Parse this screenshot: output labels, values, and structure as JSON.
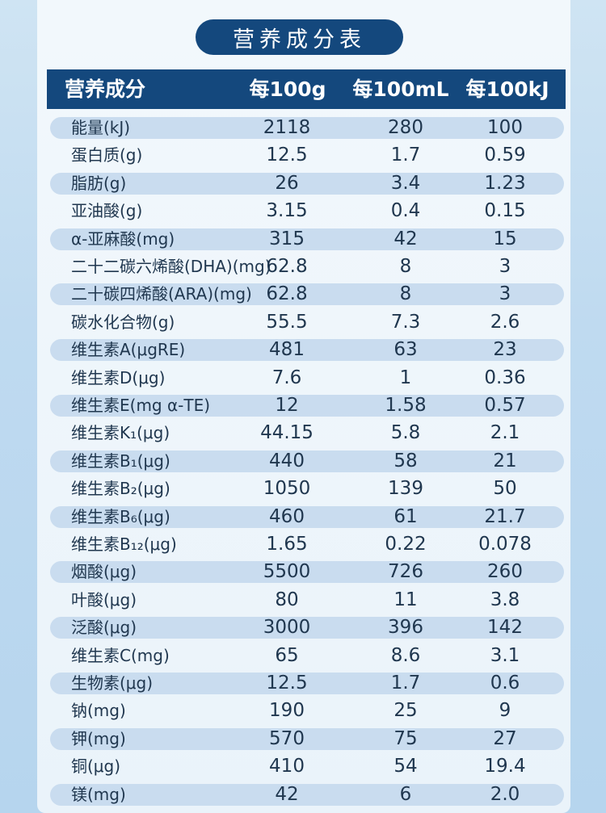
{
  "title": "营养成分表",
  "header": {
    "name": "营养成分",
    "per_100g": "每100g",
    "per_100ml": "每100mL",
    "per_100kj": "每100kJ"
  },
  "rows": [
    {
      "name": "能量(kJ)",
      "v1": "2118",
      "v2": "280",
      "v3": "100"
    },
    {
      "name": "蛋白质(g)",
      "v1": "12.5",
      "v2": "1.7",
      "v3": "0.59"
    },
    {
      "name": "脂肪(g)",
      "v1": "26",
      "v2": "3.4",
      "v3": "1.23"
    },
    {
      "name": "亚油酸(g)",
      "v1": "3.15",
      "v2": "0.4",
      "v3": "0.15"
    },
    {
      "name": "α-亚麻酸(mg)",
      "v1": "315",
      "v2": "42",
      "v3": "15"
    },
    {
      "name": "二十二碳六烯酸(DHA)(mg)",
      "v1": "62.8",
      "v2": "8",
      "v3": "3"
    },
    {
      "name": "二十碳四烯酸(ARA)(mg)",
      "v1": "62.8",
      "v2": "8",
      "v3": "3"
    },
    {
      "name": "碳水化合物(g)",
      "v1": "55.5",
      "v2": "7.3",
      "v3": "2.6"
    },
    {
      "name": "维生素A(μgRE)",
      "v1": "481",
      "v2": "63",
      "v3": "23"
    },
    {
      "name": "维生素D(μg)",
      "v1": "7.6",
      "v2": "1",
      "v3": "0.36"
    },
    {
      "name": "维生素E(mg α-TE)",
      "v1": "12",
      "v2": "1.58",
      "v3": "0.57"
    },
    {
      "name": "维生素K₁(μg)",
      "v1": "44.15",
      "v2": "5.8",
      "v3": "2.1"
    },
    {
      "name": "维生素B₁(μg)",
      "v1": "440",
      "v2": "58",
      "v3": "21"
    },
    {
      "name": "维生素B₂(μg)",
      "v1": "1050",
      "v2": "139",
      "v3": "50"
    },
    {
      "name": "维生素B₆(μg)",
      "v1": "460",
      "v2": "61",
      "v3": "21.7"
    },
    {
      "name": "维生素B₁₂(μg)",
      "v1": "1.65",
      "v2": "0.22",
      "v3": "0.078"
    },
    {
      "name": "烟酸(μg)",
      "v1": "5500",
      "v2": "726",
      "v3": "260"
    },
    {
      "name": "叶酸(μg)",
      "v1": "80",
      "v2": "11",
      "v3": "3.8"
    },
    {
      "name": "泛酸(μg)",
      "v1": "3000",
      "v2": "396",
      "v3": "142"
    },
    {
      "name": "维生素C(mg)",
      "v1": "65",
      "v2": "8.6",
      "v3": "3.1"
    },
    {
      "name": "生物素(μg)",
      "v1": "12.5",
      "v2": "1.7",
      "v3": "0.6"
    },
    {
      "name": "钠(mg)",
      "v1": "190",
      "v2": "25",
      "v3": "9"
    },
    {
      "name": "钾(mg)",
      "v1": "570",
      "v2": "75",
      "v3": "27"
    },
    {
      "name": "铜(μg)",
      "v1": "410",
      "v2": "54",
      "v3": "19.4"
    },
    {
      "name": "镁(mg)",
      "v1": "42",
      "v2": "6",
      "v3": "2.0"
    }
  ],
  "colors": {
    "header_bg": "#14487d",
    "row_stripe": "#c9dcef",
    "text": "#20374f",
    "page_bg": "#bfdaf0"
  }
}
